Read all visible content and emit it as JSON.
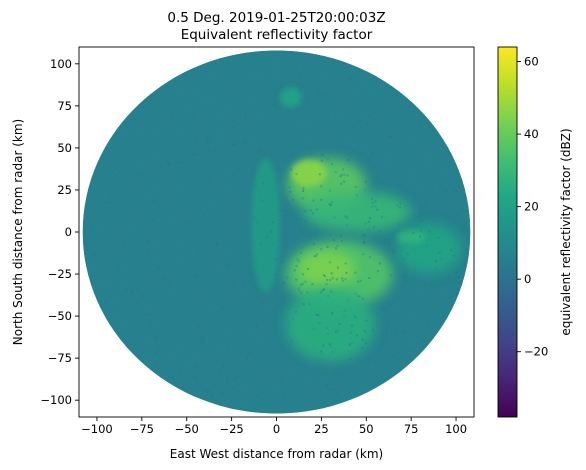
{
  "chart_data": {
    "type": "heatmap",
    "title_line1": "0.5 Deg. 2019-01-25T20:00:03Z",
    "title_line2": "Equivalent reflectivity factor",
    "xlabel": "East West distance from radar (km)",
    "ylabel": "North South distance from radar (km)",
    "xlim": [
      -110,
      110
    ],
    "ylim": [
      -110,
      110
    ],
    "xticks": [
      -100,
      -75,
      -50,
      -25,
      0,
      25,
      50,
      75,
      100
    ],
    "yticks": [
      -100,
      -75,
      -50,
      -25,
      0,
      25,
      50,
      75,
      100
    ],
    "radar_range_km": 108,
    "colorbar": {
      "label": "equivalent reflectivity factor (dBZ)",
      "colormap": "viridis",
      "vmin": -38,
      "vmax": 64,
      "ticks": [
        -20,
        0,
        20,
        40,
        60
      ]
    },
    "echo_regions": [
      {
        "name": "northeast band",
        "center": [
          28,
          28
        ],
        "radius_km": [
          22,
          16
        ],
        "dbz": 38
      },
      {
        "name": "northeast core",
        "center": [
          18,
          35
        ],
        "radius_km": [
          10,
          8
        ],
        "dbz": 46
      },
      {
        "name": "east band",
        "center": [
          45,
          12
        ],
        "radius_km": [
          30,
          12
        ],
        "dbz": 30
      },
      {
        "name": "southeast mass",
        "center": [
          35,
          -25
        ],
        "radius_km": [
          30,
          20
        ],
        "dbz": 36
      },
      {
        "name": "southeast core",
        "center": [
          28,
          -22
        ],
        "radius_km": [
          16,
          11
        ],
        "dbz": 44
      },
      {
        "name": "south plume",
        "center": [
          30,
          -55
        ],
        "radius_km": [
          25,
          22
        ],
        "dbz": 26
      },
      {
        "name": "far east",
        "center": [
          85,
          -10
        ],
        "radius_km": [
          18,
          15
        ],
        "dbz": 22
      },
      {
        "name": "near clutter",
        "center": [
          -6,
          4
        ],
        "radius_km": [
          8,
          40
        ],
        "dbz": 18
      },
      {
        "name": "north cells",
        "center": [
          8,
          80
        ],
        "radius_km": [
          6,
          6
        ],
        "dbz": 22
      },
      {
        "name": "east cells",
        "center": [
          75,
          -3
        ],
        "radius_km": [
          8,
          4
        ],
        "dbz": 28
      }
    ],
    "background_dbz": 6
  }
}
